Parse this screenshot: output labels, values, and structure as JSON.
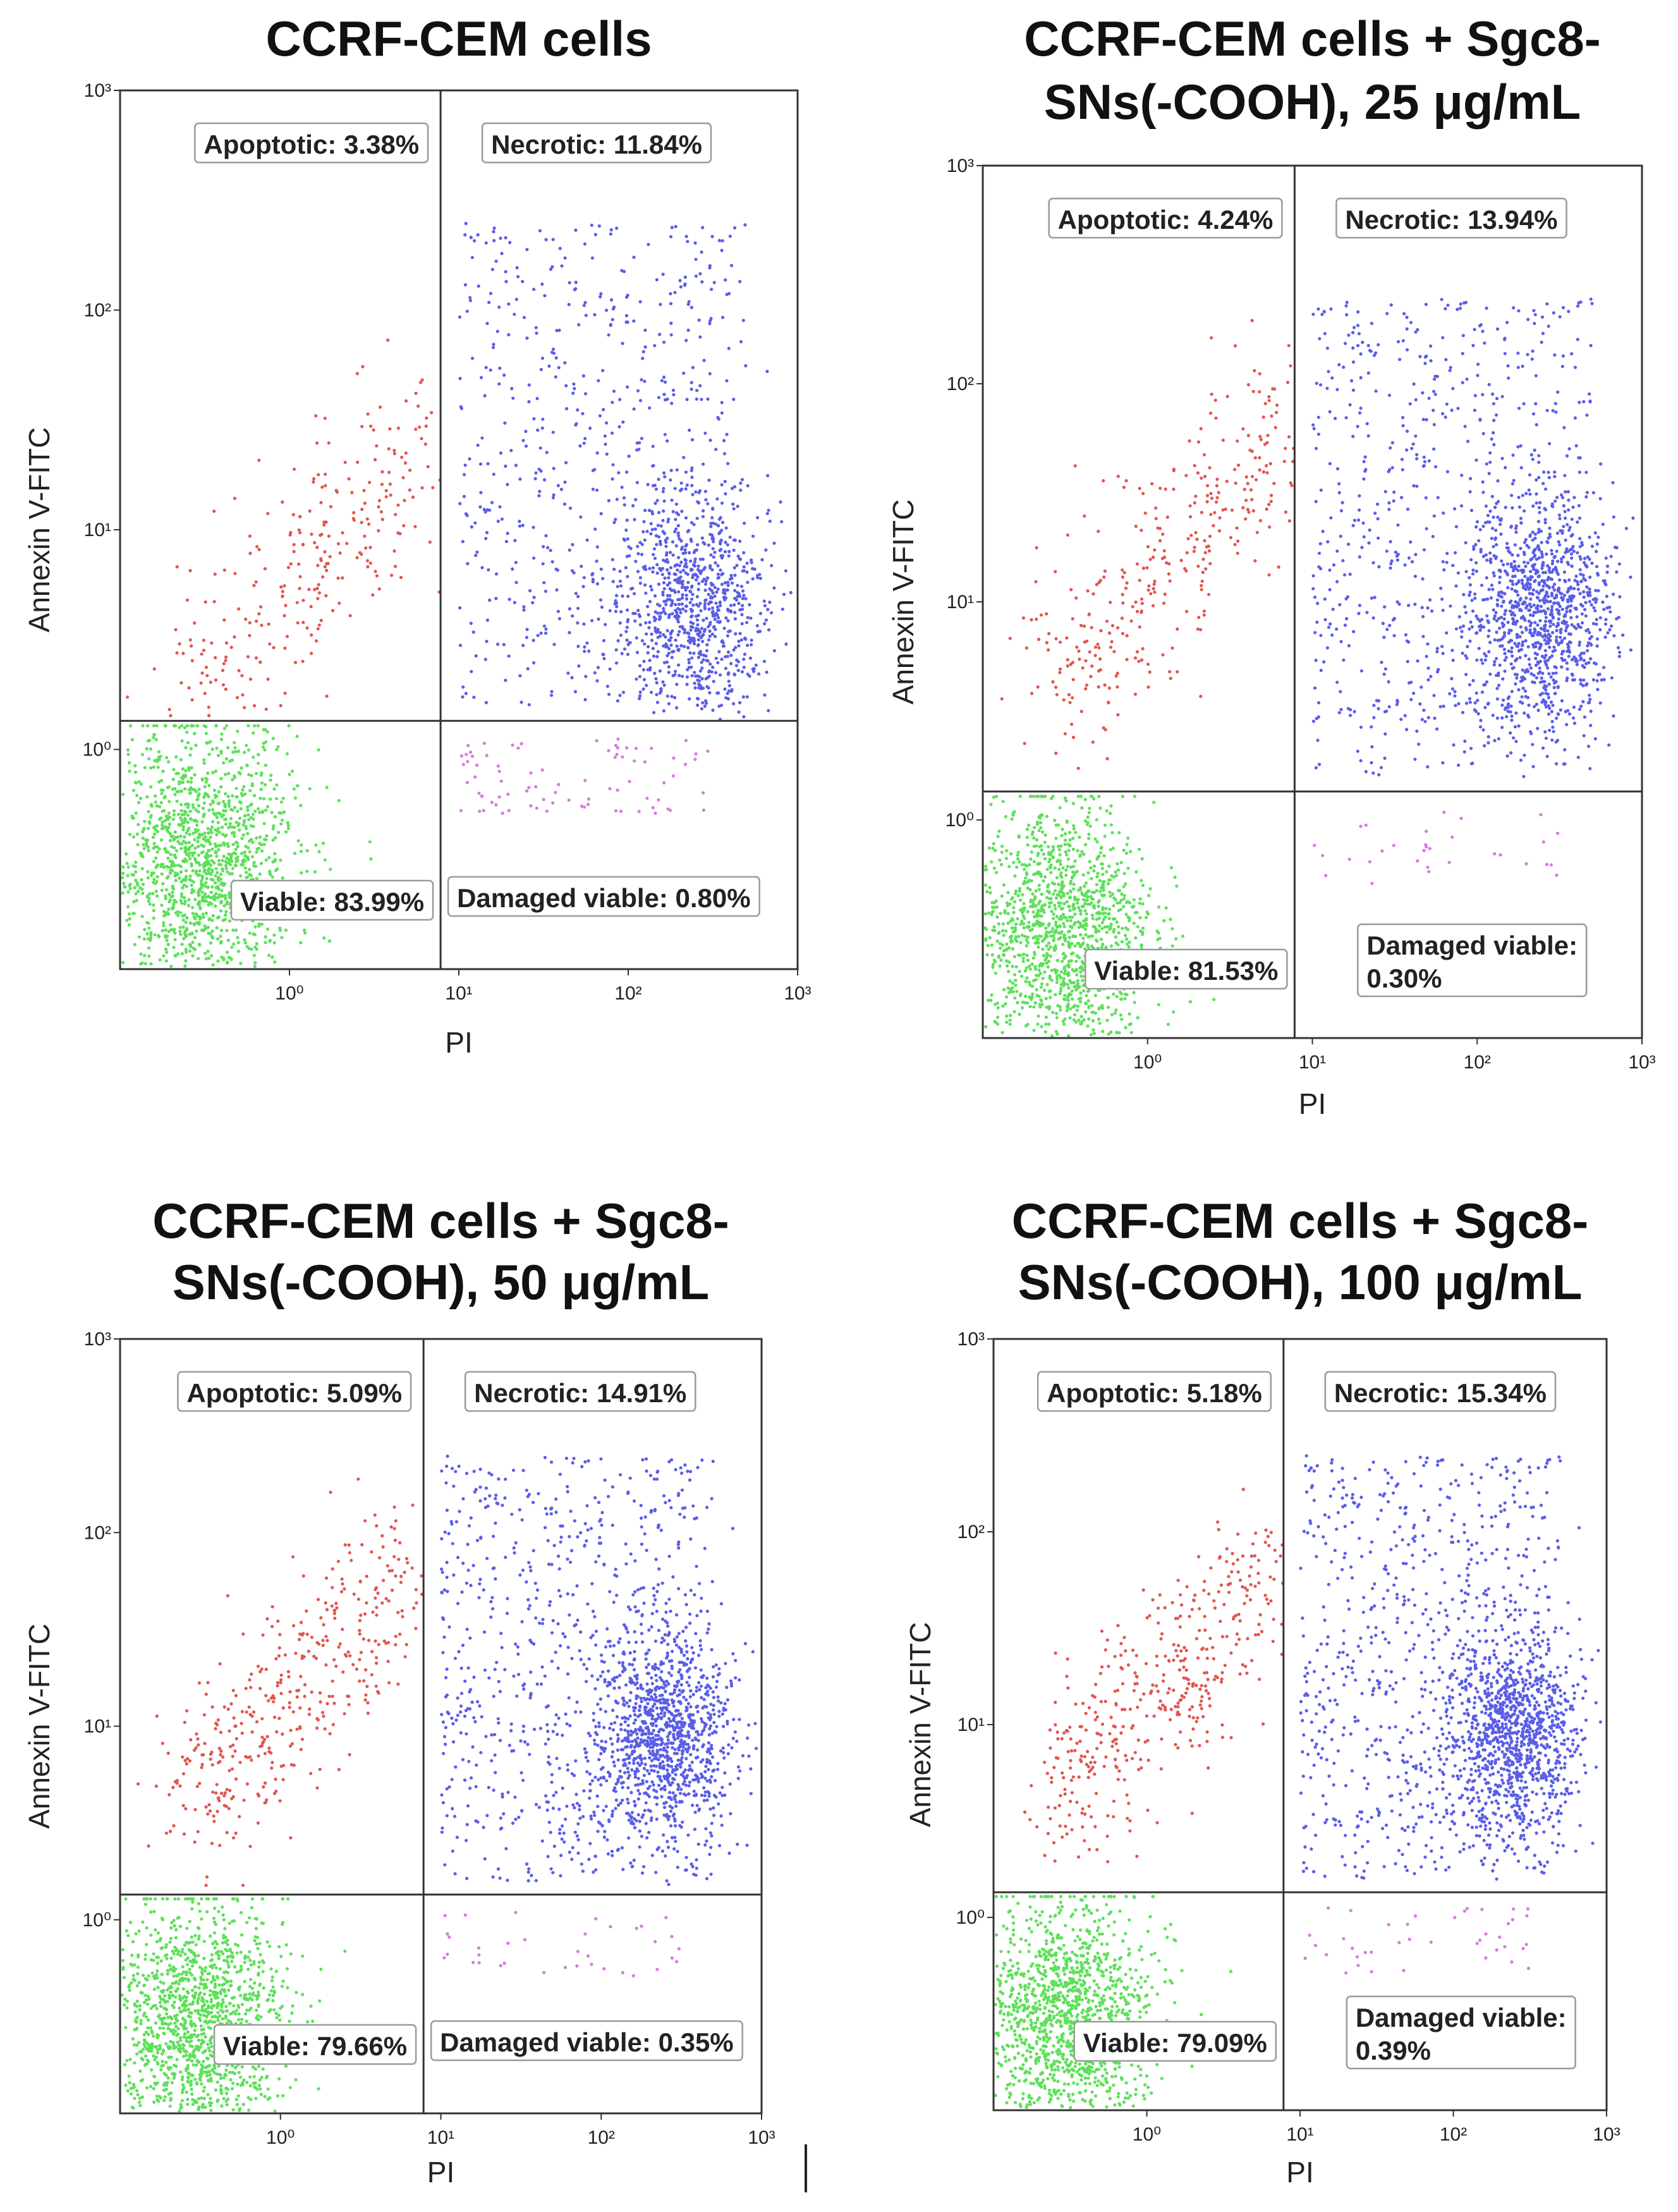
{
  "chart_data": [
    {
      "type": "scatter",
      "title": [
        "CCRF-CEM cells"
      ],
      "xlabel": "PI",
      "ylabel": "Annexin V-FITC",
      "xlim": [
        0.1,
        1000
      ],
      "ylim": [
        0.1,
        1000
      ],
      "x_ticks": [
        "10⁰",
        "10¹",
        "10²",
        "10³"
      ],
      "y_ticks": [
        "10⁰",
        "10¹",
        "10²",
        "10³"
      ],
      "gate": {
        "x": 7.8,
        "y": 1.35
      },
      "quadrants": {
        "apoptotic": "Apoptotic: 3.38%",
        "necrotic": "Necrotic: 11.84%",
        "viable": "Viable: 83.99%",
        "damaged_viable": [
          "Damaged viable: 0.80%"
        ]
      },
      "populations": {
        "viable": 83.99,
        "apoptotic": 3.38,
        "necrotic": 11.84,
        "damaged_viable": 0.8
      }
    },
    {
      "type": "scatter",
      "title": [
        "CCRF-CEM cells + Sgc8-",
        "SNs(-COOH), 25 μg/mL"
      ],
      "xlabel": "PI",
      "ylabel": "Annexin V-FITC",
      "xlim": [
        0.1,
        1000
      ],
      "ylim": [
        0.1,
        1000
      ],
      "x_ticks": [
        "10⁰",
        "10¹",
        "10²",
        "10³"
      ],
      "y_ticks": [
        "10⁰",
        "10¹",
        "10²",
        "10³"
      ],
      "gate": {
        "x": 7.8,
        "y": 1.35
      },
      "quadrants": {
        "apoptotic": "Apoptotic: 4.24%",
        "necrotic": "Necrotic: 13.94%",
        "viable": "Viable: 81.53%",
        "damaged_viable": [
          "Damaged viable:",
          "0.30%"
        ]
      },
      "populations": {
        "viable": 81.53,
        "apoptotic": 4.24,
        "necrotic": 13.94,
        "damaged_viable": 0.3
      }
    },
    {
      "type": "scatter",
      "title": [
        "CCRF-CEM cells + Sgc8-",
        "SNs(-COOH), 50 μg/mL"
      ],
      "xlabel": "PI",
      "ylabel": "Annexin V-FITC",
      "xlim": [
        0.1,
        1000
      ],
      "ylim": [
        0.1,
        1000
      ],
      "x_ticks": [
        "10⁰",
        "10¹",
        "10²",
        "10³"
      ],
      "y_ticks": [
        "10⁰",
        "10¹",
        "10²",
        "10³"
      ],
      "gate": {
        "x": 7.8,
        "y": 1.35
      },
      "quadrants": {
        "apoptotic": "Apoptotic: 5.09%",
        "necrotic": "Necrotic: 14.91%",
        "viable": "Viable: 79.66%",
        "damaged_viable": [
          "Damaged viable: 0.35%"
        ]
      },
      "populations": {
        "viable": 79.66,
        "apoptotic": 5.09,
        "necrotic": 14.91,
        "damaged_viable": 0.35
      }
    },
    {
      "type": "scatter",
      "title": [
        "CCRF-CEM cells + Sgc8-",
        "SNs(-COOH), 100 μg/mL"
      ],
      "xlabel": "PI",
      "ylabel": "Annexin V-FITC",
      "xlim": [
        0.1,
        1000
      ],
      "ylim": [
        0.1,
        1000
      ],
      "x_ticks": [
        "10⁰",
        "10¹",
        "10²",
        "10³"
      ],
      "y_ticks": [
        "10⁰",
        "10¹",
        "10²",
        "10³"
      ],
      "gate": {
        "x": 7.8,
        "y": 1.35
      },
      "quadrants": {
        "apoptotic": "Apoptotic: 5.18%",
        "necrotic": "Necrotic: 15.34%",
        "viable": "Viable: 79.09%",
        "damaged_viable": [
          "Damaged viable:",
          "0.39%"
        ]
      },
      "populations": {
        "viable": 79.09,
        "apoptotic": 5.18,
        "necrotic": 15.34,
        "damaged_viable": 0.39
      }
    }
  ],
  "colors": {
    "viable": "#5ee05a",
    "apoptotic": "#e0564f",
    "necrotic": "#5a5ee6",
    "damaged_viable": "#d77ae0",
    "frame": "#333333"
  }
}
